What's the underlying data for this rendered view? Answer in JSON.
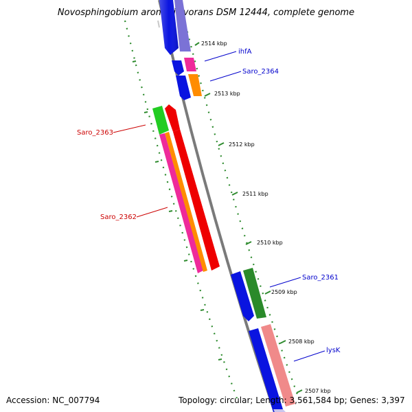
{
  "title": "Novosphingobium aromaticivorans DSM 12444, complete genome",
  "footer": {
    "accession": "Accession: NC_007794",
    "summary": "Topology: circular; Length: 3,561,584 bp; Genes: 3,397"
  },
  "ticks": [
    "2514 kbp",
    "2513 kbp",
    "2512 kbp",
    "2511 kbp",
    "2510 kbp",
    "2509 kbp",
    "2508 kbp",
    "2507 kbp"
  ],
  "gene_labels": [
    {
      "text": "ihfA",
      "color": "#0000cc"
    },
    {
      "text": "Saro_2364",
      "color": "#0000cc"
    },
    {
      "text": "Saro_2363",
      "color": "#cc0000"
    },
    {
      "text": "Saro_2362",
      "color": "#cc0000"
    },
    {
      "text": "Saro_2361",
      "color": "#0000cc"
    },
    {
      "text": "lysK",
      "color": "#0000cc"
    }
  ],
  "colors": {
    "backbone": "#7a7a7a",
    "tick_dots": "#2e8b2e",
    "forward_blue": "#0a14e0",
    "lavender": "#7b72d6",
    "magenta": "#ee2a9a",
    "orange": "#ff8c00",
    "red": "#ee0000",
    "green": "#22cc22",
    "dark_green": "#2a8a2a",
    "salmon": "#f08a8a"
  }
}
